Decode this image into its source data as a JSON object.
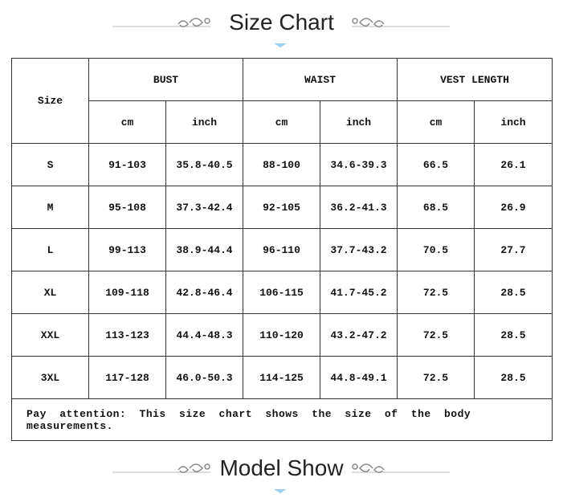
{
  "header": {
    "title": "Size Chart"
  },
  "table": {
    "corner": "Size",
    "groups": [
      "BUST",
      "WAIST",
      "VEST LENGTH"
    ],
    "units": [
      "cm",
      "inch",
      "cm",
      "inch",
      "cm",
      "inch"
    ],
    "rows": [
      [
        "S",
        "91-103",
        "35.8-40.5",
        "88-100",
        "34.6-39.3",
        "66.5",
        "26.1"
      ],
      [
        "M",
        "95-108",
        "37.3-42.4",
        "92-105",
        "36.2-41.3",
        "68.5",
        "26.9"
      ],
      [
        "L",
        "99-113",
        "38.9-44.4",
        "96-110",
        "37.7-43.2",
        "70.5",
        "27.7"
      ],
      [
        "XL",
        "109-118",
        "42.8-46.4",
        "106-115",
        "41.7-45.2",
        "72.5",
        "28.5"
      ],
      [
        "XXL",
        "113-123",
        "44.4-48.3",
        "110-120",
        "43.2-47.2",
        "72.5",
        "28.5"
      ],
      [
        "3XL",
        "117-128",
        "46.0-50.3",
        "114-125",
        "44.8-49.1",
        "72.5",
        "28.5"
      ]
    ],
    "note": "Pay attention: This size chart shows the size of the body measurements."
  },
  "footer": {
    "title": "Model Show"
  }
}
